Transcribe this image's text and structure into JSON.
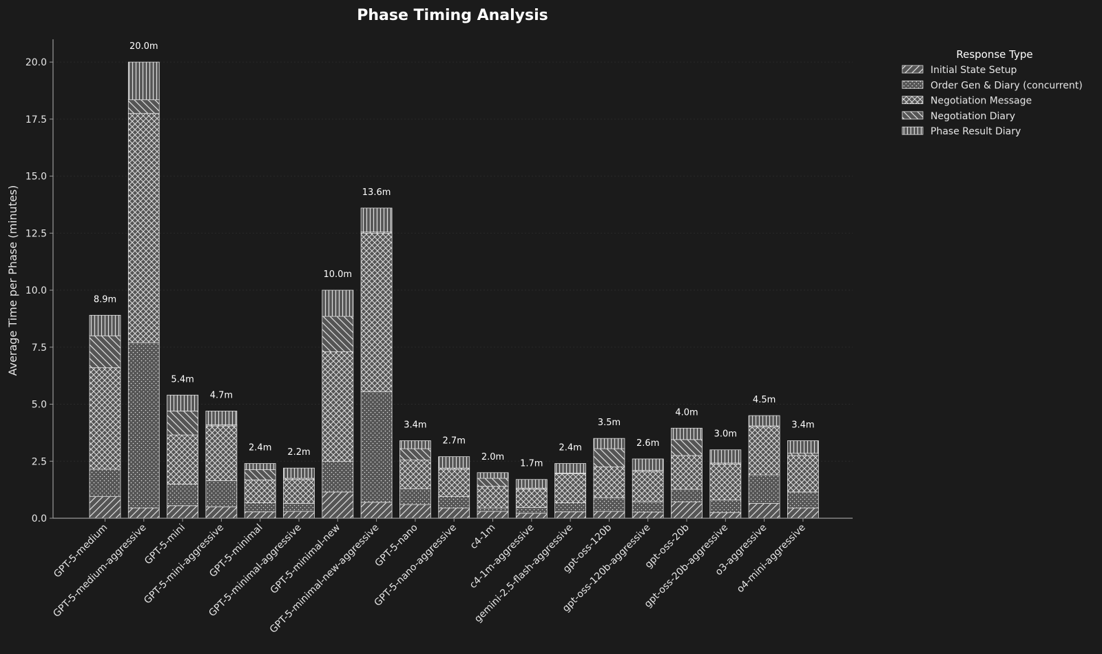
{
  "colors": {
    "background": "#1b1b1b",
    "bar_fill": "#555555",
    "bar_edge": "#e0e0e0",
    "text": "#ffffff",
    "axis": "#9a9a9a",
    "grid": "#2b2b2b"
  },
  "chart_data": {
    "type": "bar",
    "stacked": true,
    "title": "Phase Timing Analysis",
    "xlabel": "",
    "ylabel": "Average Time per Phase (minutes)",
    "ylim": [
      0,
      21
    ],
    "yticks": [
      "0.0",
      "2.5",
      "5.0",
      "7.5",
      "10.0",
      "12.5",
      "15.0",
      "17.5",
      "20.0"
    ],
    "grid": true,
    "legend_title": "Response Type",
    "legend_position": "top-right outside",
    "categories": [
      "GPT-5-medium",
      "GPT-5-medium-aggressive",
      "GPT-5-mini",
      "GPT-5-mini-aggressive",
      "GPT-5-minimal",
      "GPT-5-minimal-aggressive",
      "GPT-5-minimal-new",
      "GPT-5-minimal-new-aggressive",
      "GPT-5-nano",
      "GPT-5-nano-aggressive",
      "c4-1m",
      "c4-1m-aggressive",
      "gemini-2.5-flash-aggressive",
      "gpt-oss-120b",
      "gpt-oss-120b-aggressive",
      "gpt-oss-20b",
      "gpt-oss-20b-aggressive",
      "o3-aggressive",
      "o4-mini-aggressive"
    ],
    "series": [
      {
        "name": "Initial State Setup",
        "pattern": "diag",
        "values": [
          0.95,
          0.45,
          0.55,
          0.5,
          0.28,
          0.3,
          1.15,
          0.7,
          0.6,
          0.45,
          0.3,
          0.22,
          0.28,
          0.3,
          0.27,
          0.72,
          0.25,
          0.65,
          0.45
        ]
      },
      {
        "name": "Order Gen & Diary (concurrent)",
        "pattern": "dots",
        "values": [
          1.2,
          7.25,
          0.95,
          1.15,
          0.4,
          0.35,
          1.35,
          4.85,
          0.7,
          0.5,
          0.15,
          0.25,
          0.4,
          0.6,
          0.45,
          0.55,
          0.55,
          1.25,
          0.7
        ]
      },
      {
        "name": "Negotiation Message",
        "pattern": "cross",
        "values": [
          4.45,
          10.05,
          2.15,
          2.4,
          1.0,
          1.05,
          4.8,
          6.95,
          1.25,
          1.2,
          0.95,
          0.8,
          1.27,
          1.35,
          1.33,
          1.48,
          1.57,
          2.1,
          1.6
        ]
      },
      {
        "name": "Negotiation Diary",
        "pattern": "backdiag",
        "values": [
          1.4,
          0.6,
          1.05,
          0.05,
          0.45,
          0.05,
          1.55,
          0.05,
          0.5,
          0.05,
          0.35,
          0.05,
          0.03,
          0.8,
          0.05,
          0.7,
          0.05,
          0.05,
          0.1
        ]
      },
      {
        "name": "Phase Result Diary",
        "pattern": "vert",
        "values": [
          0.9,
          1.65,
          0.7,
          0.6,
          0.27,
          0.45,
          1.15,
          1.05,
          0.35,
          0.5,
          0.25,
          0.38,
          0.42,
          0.45,
          0.5,
          0.5,
          0.58,
          0.45,
          0.55
        ]
      }
    ],
    "totals_labels": [
      "8.9m",
      "20.0m",
      "5.4m",
      "4.7m",
      "2.4m",
      "2.2m",
      "10.0m",
      "13.6m",
      "3.4m",
      "2.7m",
      "2.0m",
      "1.7m",
      "2.4m",
      "3.5m",
      "2.6m",
      "4.0m",
      "3.0m",
      "4.5m",
      "3.4m"
    ]
  }
}
